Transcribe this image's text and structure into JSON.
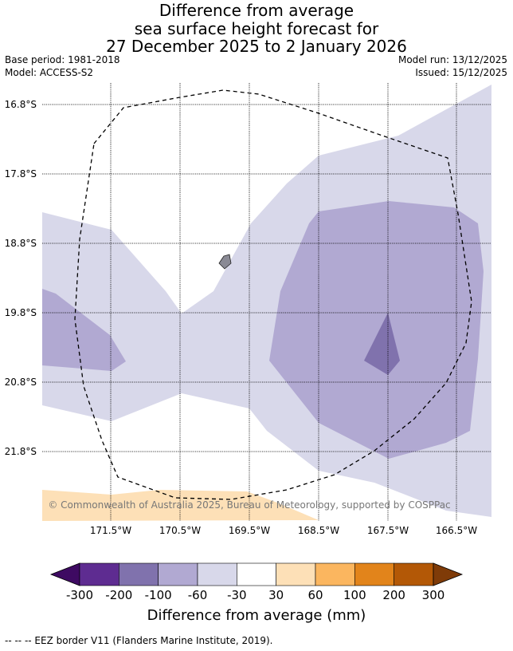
{
  "title": {
    "line1": "Difference from average",
    "line2": "sea surface height forecast for",
    "line3": "27 December 2025 to 2 January 2026"
  },
  "meta": {
    "base_period": "Base period: 1981-2018",
    "model": "Model: ACCESS-S2",
    "model_run": "Model run: 13/12/2025",
    "issued": "Issued: 15/12/2025"
  },
  "map": {
    "lat_labels": [
      "16.8°S",
      "17.8°S",
      "18.8°S",
      "19.8°S",
      "20.8°S",
      "21.8°S"
    ],
    "lon_labels": [
      "171.5°W",
      "170.5°W",
      "169.5°W",
      "168.5°W",
      "167.5°W",
      "166.5°W"
    ],
    "copyright": "© Commonwealth of Australia 2025, Bureau of Meteorology, supported by COSPPac",
    "colors": {
      "level_m200_m100": "#8072ad",
      "level_m100_m60": "#b1a9d2",
      "level_m60_m30": "#d8d8ea",
      "level_30_60": "#fde0b7",
      "land": "#8a8a95"
    }
  },
  "colorbar": {
    "ticks": [
      "-300",
      "-200",
      "-100",
      "-60",
      "-30",
      "30",
      "60",
      "100",
      "200",
      "300"
    ],
    "colors": [
      "#3e0a62",
      "#5e2c91",
      "#8072ad",
      "#b1a9d2",
      "#d8d8ea",
      "#ffffff",
      "#fde0b7",
      "#fbb65f",
      "#e2841b",
      "#b35806",
      "#7f3b08"
    ],
    "label": "Difference from average (mm)"
  },
  "footnote": "--  --  -- EEZ border V11 (Flanders Marine Institute, 2019)."
}
